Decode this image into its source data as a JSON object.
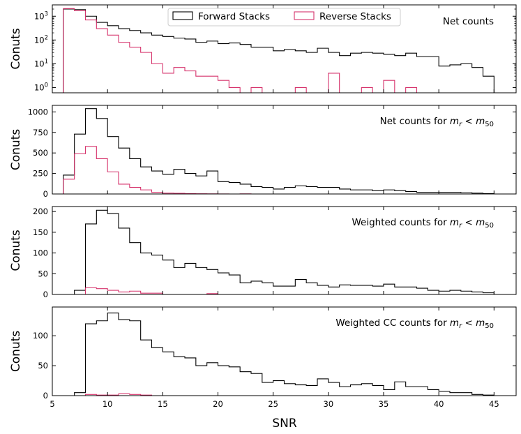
{
  "figure": {
    "xlabel": "SNR",
    "x_ticks": [
      5,
      10,
      15,
      20,
      25,
      30,
      35,
      40,
      45
    ],
    "xlim": [
      5,
      47
    ],
    "legend": {
      "placement": "top-center",
      "entries": [
        {
          "name": "Forward Stacks",
          "color": "#000000"
        },
        {
          "name": "Reverse Stacks",
          "color": "#d6336c"
        }
      ]
    }
  },
  "chart_data": [
    {
      "type": "step",
      "title": "Net counts",
      "annotation": {
        "text": "Net counts",
        "math": false
      },
      "ylabel": "Conuts",
      "yscale": "log",
      "ylim": [
        0.6,
        3000
      ],
      "y_ticks": [
        {
          "value": 1,
          "label_base": "10",
          "label_exp": "0"
        },
        {
          "value": 10,
          "label_base": "10",
          "label_exp": "1"
        },
        {
          "value": 100,
          "label_base": "10",
          "label_exp": "2"
        },
        {
          "value": 1000,
          "label_base": "10",
          "label_exp": "3"
        }
      ],
      "bin_edges": [
        6,
        7,
        8,
        9,
        10,
        11,
        12,
        13,
        14,
        15,
        16,
        17,
        18,
        19,
        20,
        21,
        22,
        23,
        24,
        25,
        26,
        27,
        28,
        29,
        30,
        31,
        32,
        33,
        34,
        35,
        36,
        37,
        38,
        39,
        40,
        41,
        42,
        43,
        44,
        45
      ],
      "series": [
        {
          "name": "Forward Stacks",
          "color": "#000000",
          "values": [
            2000,
            1900,
            1000,
            550,
            400,
            300,
            250,
            200,
            160,
            140,
            120,
            110,
            80,
            90,
            70,
            75,
            65,
            50,
            50,
            35,
            40,
            35,
            30,
            45,
            30,
            22,
            28,
            30,
            28,
            25,
            22,
            28,
            20,
            20,
            8,
            9,
            10,
            7,
            3
          ]
        },
        {
          "name": "Reverse Stacks",
          "color": "#d6336c",
          "values": [
            2100,
            1700,
            700,
            300,
            160,
            80,
            50,
            30,
            10,
            4,
            7,
            5,
            3,
            3,
            2,
            1,
            0,
            1,
            0,
            0,
            0,
            1,
            0,
            0,
            4,
            0,
            0,
            1,
            0,
            2,
            0,
            1,
            0,
            0,
            0,
            0,
            0,
            0,
            0
          ]
        }
      ]
    },
    {
      "type": "step",
      "title": "Net counts for m_r < m_50",
      "annotation": {
        "text": "Net counts for ",
        "math": true
      },
      "ylabel": "Conuts",
      "yscale": "linear",
      "ylim": [
        0,
        1080
      ],
      "y_ticks": [
        0,
        250,
        500,
        750,
        1000
      ],
      "bin_edges": [
        6,
        7,
        8,
        9,
        10,
        11,
        12,
        13,
        14,
        15,
        16,
        17,
        18,
        19,
        20,
        21,
        22,
        23,
        24,
        25,
        26,
        27,
        28,
        29,
        30,
        31,
        32,
        33,
        34,
        35,
        36,
        37,
        38,
        39,
        40,
        41,
        42,
        43,
        44,
        45
      ],
      "series": [
        {
          "name": "Forward Stacks",
          "color": "#000000",
          "values": [
            230,
            730,
            1040,
            920,
            700,
            560,
            430,
            330,
            280,
            240,
            300,
            250,
            220,
            280,
            150,
            140,
            120,
            90,
            80,
            60,
            80,
            100,
            90,
            80,
            80,
            60,
            50,
            50,
            40,
            50,
            40,
            30,
            20,
            20,
            20,
            20,
            15,
            10,
            5
          ]
        },
        {
          "name": "Reverse Stacks",
          "color": "#d6336c",
          "values": [
            180,
            490,
            580,
            430,
            270,
            120,
            80,
            50,
            20,
            10,
            8,
            5,
            3,
            2,
            1,
            0,
            2,
            0,
            0,
            0,
            0,
            0,
            0,
            0,
            0,
            0,
            0,
            0,
            0,
            0,
            0,
            0,
            0,
            0,
            0,
            0,
            0,
            0,
            0
          ]
        }
      ]
    },
    {
      "type": "step",
      "title": "Weighted counts for m_r < m_50",
      "annotation": {
        "text": "Weighted counts for ",
        "math": true
      },
      "ylabel": "Conuts",
      "yscale": "linear",
      "ylim": [
        0,
        212
      ],
      "y_ticks": [
        0,
        50,
        100,
        150,
        200
      ],
      "bin_edges": [
        6,
        7,
        8,
        9,
        10,
        11,
        12,
        13,
        14,
        15,
        16,
        17,
        18,
        19,
        20,
        21,
        22,
        23,
        24,
        25,
        26,
        27,
        28,
        29,
        30,
        31,
        32,
        33,
        34,
        35,
        36,
        37,
        38,
        39,
        40,
        41,
        42,
        43,
        44,
        45
      ],
      "series": [
        {
          "name": "Forward Stacks",
          "color": "#000000",
          "values": [
            0,
            10,
            170,
            203,
            195,
            160,
            125,
            100,
            95,
            83,
            65,
            75,
            65,
            60,
            52,
            47,
            28,
            32,
            28,
            20,
            20,
            36,
            28,
            22,
            18,
            23,
            22,
            22,
            20,
            25,
            18,
            18,
            15,
            10,
            8,
            10,
            8,
            6,
            4
          ]
        },
        {
          "name": "Reverse Stacks",
          "color": "#d6336c",
          "values": [
            0,
            0,
            16,
            14,
            10,
            6,
            8,
            3,
            3,
            0,
            0,
            0,
            0,
            2,
            0,
            0,
            0,
            0,
            0,
            0,
            0,
            0,
            0,
            0,
            0,
            0,
            0,
            0,
            0,
            0,
            0,
            0,
            0,
            0,
            0,
            0,
            0,
            0,
            0
          ]
        }
      ]
    },
    {
      "type": "step",
      "title": "Weighted CC counts for m_r < m_50",
      "annotation": {
        "text": "Weighted CC counts for ",
        "math": true
      },
      "ylabel": "Conuts",
      "yscale": "linear",
      "ylim": [
        0,
        148
      ],
      "y_ticks": [
        0,
        50,
        100
      ],
      "bin_edges": [
        6,
        7,
        8,
        9,
        10,
        11,
        12,
        13,
        14,
        15,
        16,
        17,
        18,
        19,
        20,
        21,
        22,
        23,
        24,
        25,
        26,
        27,
        28,
        29,
        30,
        31,
        32,
        33,
        34,
        35,
        36,
        37,
        38,
        39,
        40,
        41,
        42,
        43,
        44,
        45
      ],
      "series": [
        {
          "name": "Forward Stacks",
          "color": "#000000",
          "values": [
            0,
            5,
            120,
            125,
            138,
            127,
            125,
            93,
            80,
            73,
            65,
            63,
            50,
            55,
            50,
            48,
            40,
            37,
            22,
            25,
            20,
            18,
            17,
            28,
            22,
            15,
            18,
            20,
            17,
            10,
            23,
            15,
            15,
            10,
            7,
            5,
            5,
            2,
            1
          ]
        },
        {
          "name": "Reverse Stacks",
          "color": "#d6336c",
          "values": [
            0,
            0,
            2,
            1,
            1,
            3,
            2,
            1,
            0,
            0,
            0,
            0,
            0,
            0,
            0,
            0,
            0,
            0,
            0,
            0,
            0,
            0,
            0,
            0,
            0,
            0,
            0,
            0,
            0,
            0,
            0,
            0,
            0,
            0,
            0,
            0,
            0,
            0,
            0
          ]
        }
      ]
    }
  ]
}
